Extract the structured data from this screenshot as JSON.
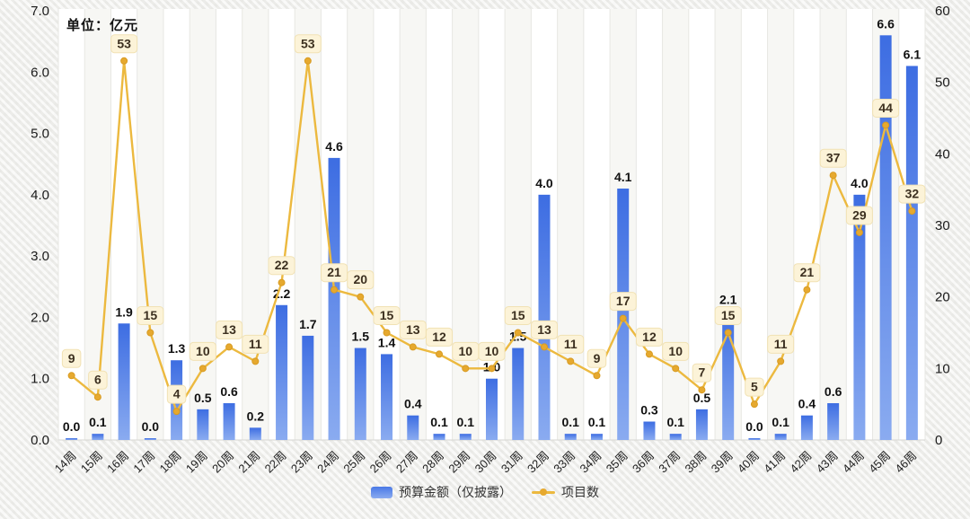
{
  "unit_label": "单位：亿元",
  "legend": {
    "bar_label": "预算金额（仅披露）",
    "line_label": "项目数"
  },
  "colors": {
    "bar_top": "#3d6de2",
    "bar_bottom": "#8aabf0",
    "line": "#ecb93f",
    "point": "#e6a92f",
    "badge_bg": "#fcf3d8",
    "badge_border": "#f1e2b4",
    "badge_text": "#3e3categories520",
    "axis_text": "#1a1a1a",
    "gridline": "#e7e7e3",
    "plot_bg": "#ffffff",
    "alt_band": "#f7f7f4"
  },
  "chart_data": {
    "type": "bar+line",
    "title": "",
    "unit": "单位：亿元",
    "categories": [
      "14周",
      "15周",
      "16周",
      "17周",
      "18周",
      "19周",
      "20周",
      "21周",
      "22周",
      "23周",
      "24周",
      "25周",
      "26周",
      "27周",
      "28周",
      "29周",
      "30周",
      "31周",
      "32周",
      "33周",
      "34周",
      "35周",
      "36周",
      "37周",
      "38周",
      "39周",
      "40周",
      "41周",
      "42周",
      "43周",
      "44周",
      "45周",
      "46周"
    ],
    "series": [
      {
        "name": "预算金额（仅披露）",
        "type": "bar",
        "axis": "left",
        "values": [
          0.0,
          0.1,
          1.9,
          0.0,
          1.3,
          0.5,
          0.6,
          0.2,
          2.2,
          1.7,
          4.6,
          1.5,
          1.4,
          0.4,
          0.1,
          0.1,
          1.0,
          1.5,
          4.0,
          0.1,
          0.1,
          4.1,
          0.3,
          0.1,
          0.5,
          2.1,
          0.0,
          0.1,
          0.4,
          0.6,
          4.0,
          6.6,
          6.1
        ]
      },
      {
        "name": "项目数",
        "type": "line",
        "axis": "right",
        "values": [
          9,
          6,
          53,
          15,
          4,
          10,
          13,
          11,
          22,
          53,
          21,
          20,
          15,
          13,
          12,
          10,
          10,
          15,
          13,
          11,
          9,
          17,
          12,
          10,
          7,
          15,
          5,
          11,
          21,
          37,
          29,
          44,
          32
        ]
      }
    ],
    "left_axis": {
      "min": 0,
      "max": 7,
      "ticks": [
        "0.0",
        "1.0",
        "2.0",
        "3.0",
        "4.0",
        "5.0",
        "6.0",
        "7.0"
      ]
    },
    "right_axis": {
      "min": 0,
      "max": 60,
      "ticks": [
        "0",
        "10",
        "20",
        "30",
        "40",
        "50",
        "60"
      ]
    },
    "grid": "vertical split lines, alternating column bands",
    "legend_position": "bottom"
  }
}
